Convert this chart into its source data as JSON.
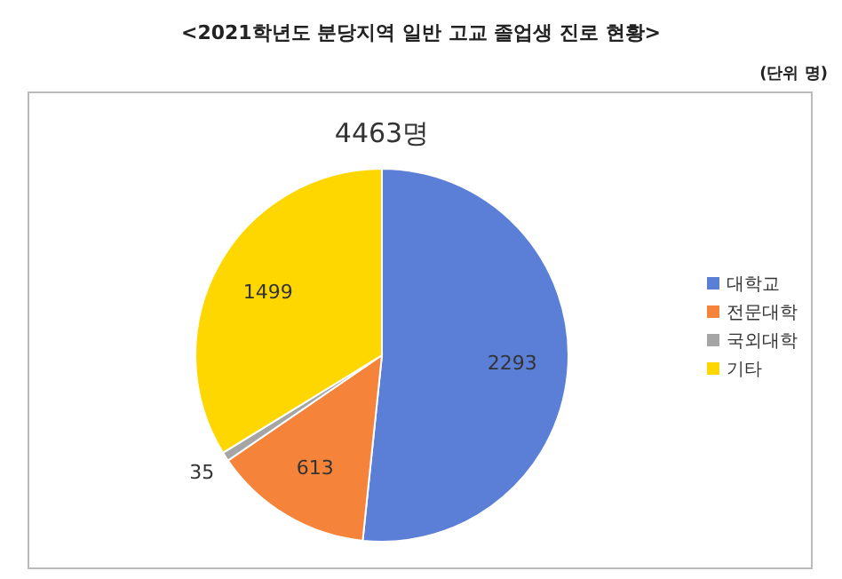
{
  "chart_data": {
    "type": "pie",
    "title": "<2021학년도 분당지역 일반 고교 졸업생 진로 현황>",
    "subtitle": "4463명",
    "annotations": [
      "(단위 명)"
    ],
    "categories": [
      "대학교",
      "전문대학",
      "국외대학",
      "기타"
    ],
    "values": [
      2293,
      613,
      35,
      1499
    ],
    "colors": [
      "#5b7fd6",
      "#f5843a",
      "#a5a5a5",
      "#ffd700"
    ],
    "data_labels": true,
    "legend": "right"
  }
}
